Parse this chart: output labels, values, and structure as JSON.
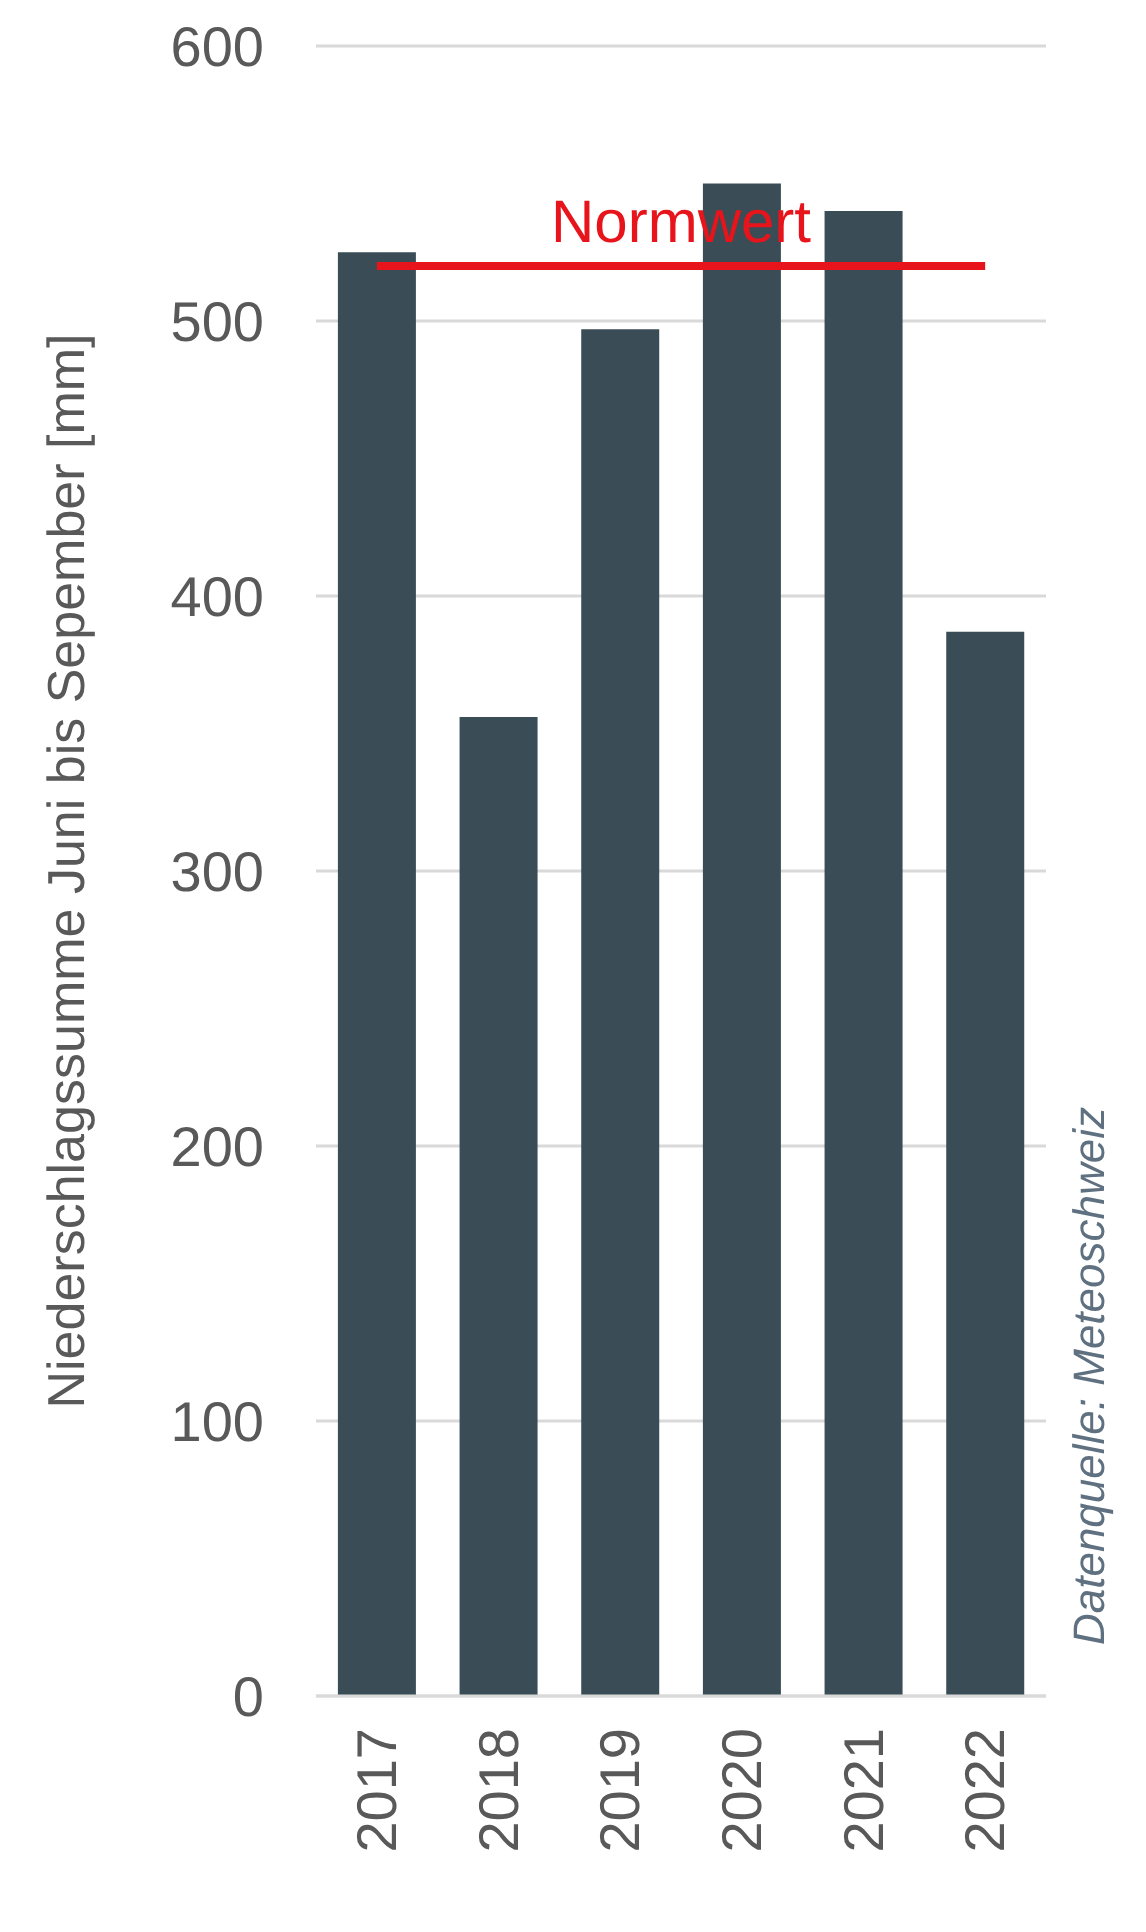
{
  "chart_data": {
    "type": "bar",
    "ylabel": "Niederschlagssumme Juni bis Sepember [mm]",
    "categories": [
      "2017",
      "2018",
      "2019",
      "2020",
      "2021",
      "2022"
    ],
    "values": [
      525,
      356,
      497,
      550,
      540,
      387
    ],
    "color": "#3a4c55",
    "ylim": [
      0,
      600
    ],
    "yticks": [
      0,
      100,
      200,
      300,
      400,
      500,
      600
    ],
    "grid": "y",
    "ref_lines": [
      {
        "axis": "y",
        "value": 520,
        "label": "Normwert",
        "color": "#e8141c"
      }
    ],
    "annotations": [
      "Datenquelle: Meteoschweiz"
    ]
  }
}
